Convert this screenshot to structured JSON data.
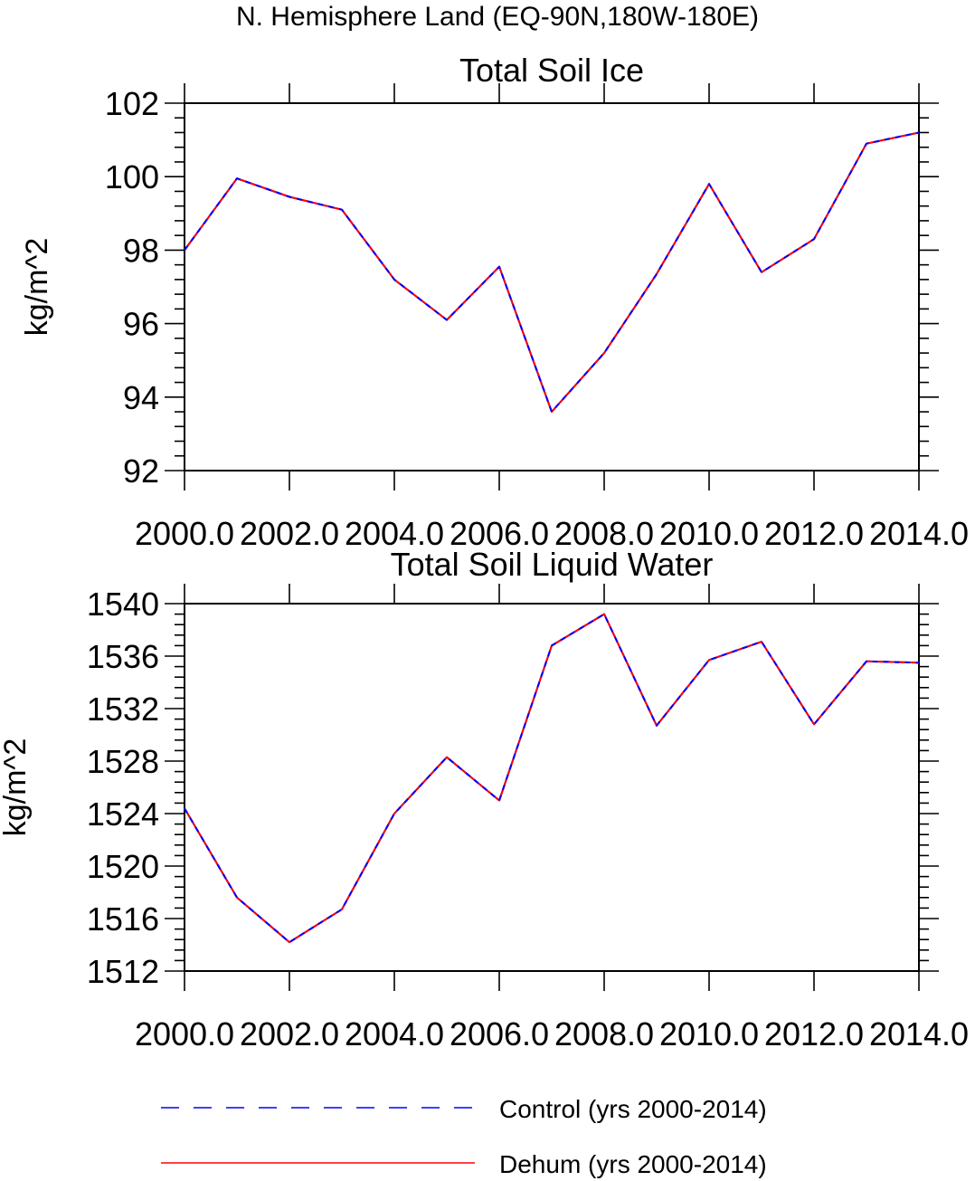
{
  "figure_title": "N. Hemisphere Land (EQ-90N,180W-180E)",
  "legend": [
    {
      "label": "Control (yrs 2000-2014)",
      "color": "#0000ff",
      "style": "dashed"
    },
    {
      "label": "Dehum (yrs 2000-2014)",
      "color": "#ff0000",
      "style": "solid"
    }
  ],
  "chart_data": [
    {
      "type": "line",
      "title": "Total Soil Ice",
      "xlabel": "",
      "ylabel": "kg/m^2",
      "xlim": [
        2000,
        2014
      ],
      "ylim": [
        92,
        102
      ],
      "xticks": [
        2000,
        2002,
        2004,
        2006,
        2008,
        2010,
        2012,
        2014
      ],
      "xtick_labels": [
        "2000.0",
        "2002.0",
        "2004.0",
        "2006.0",
        "2008.0",
        "2010.0",
        "2012.0",
        "2014.0"
      ],
      "yticks": [
        92,
        94,
        96,
        98,
        100,
        102
      ],
      "ytick_labels": [
        "92",
        "94",
        "96",
        "98",
        "100",
        "102"
      ],
      "x": [
        2000,
        2001,
        2002,
        2003,
        2004,
        2005,
        2006,
        2007,
        2008,
        2009,
        2010,
        2011,
        2012,
        2013,
        2014
      ],
      "series": [
        {
          "name": "Control (yrs 2000-2014)",
          "color": "#0000ff",
          "style": "dashed",
          "values": [
            98.0,
            99.95,
            99.45,
            99.1,
            97.2,
            96.1,
            97.55,
            93.6,
            95.2,
            97.35,
            99.8,
            97.4,
            98.3,
            100.9,
            101.2
          ]
        },
        {
          "name": "Dehum (yrs 2000-2014)",
          "color": "#ff0000",
          "style": "solid",
          "values": [
            98.0,
            99.95,
            99.45,
            99.1,
            97.2,
            96.1,
            97.55,
            93.6,
            95.2,
            97.35,
            99.8,
            97.4,
            98.3,
            100.9,
            101.2
          ]
        }
      ],
      "grid": false
    },
    {
      "type": "line",
      "title": "Total Soil Liquid Water",
      "xlabel": "",
      "ylabel": "kg/m^2",
      "xlim": [
        2000,
        2014
      ],
      "ylim": [
        1512,
        1540
      ],
      "xticks": [
        2000,
        2002,
        2004,
        2006,
        2008,
        2010,
        2012,
        2014
      ],
      "xtick_labels": [
        "2000.0",
        "2002.0",
        "2004.0",
        "2006.0",
        "2008.0",
        "2010.0",
        "2012.0",
        "2014.0"
      ],
      "yticks": [
        1512,
        1516,
        1520,
        1524,
        1528,
        1532,
        1536,
        1540
      ],
      "ytick_labels": [
        "1512",
        "1516",
        "1520",
        "1524",
        "1528",
        "1532",
        "1536",
        "1540"
      ],
      "x": [
        2000,
        2001,
        2002,
        2003,
        2004,
        2005,
        2006,
        2007,
        2008,
        2009,
        2010,
        2011,
        2012,
        2013,
        2014
      ],
      "series": [
        {
          "name": "Control (yrs 2000-2014)",
          "color": "#0000ff",
          "style": "dashed",
          "values": [
            1524.4,
            1517.6,
            1514.2,
            1516.7,
            1524.0,
            1528.3,
            1525.0,
            1536.8,
            1539.2,
            1530.7,
            1535.7,
            1537.1,
            1530.8,
            1535.6,
            1535.5
          ]
        },
        {
          "name": "Dehum (yrs 2000-2014)",
          "color": "#ff0000",
          "style": "solid",
          "values": [
            1524.4,
            1517.6,
            1514.2,
            1516.7,
            1524.0,
            1528.3,
            1525.0,
            1536.8,
            1539.2,
            1530.7,
            1535.7,
            1537.1,
            1530.8,
            1535.6,
            1535.5
          ]
        }
      ],
      "grid": false
    }
  ]
}
